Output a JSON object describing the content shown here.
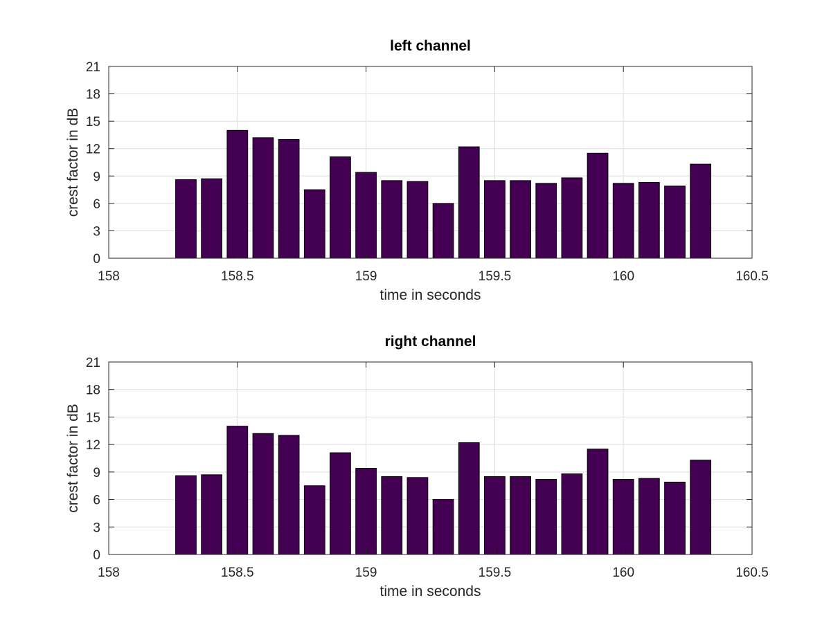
{
  "chart_data": [
    {
      "type": "bar",
      "title": "left channel",
      "xlabel": "time in seconds",
      "ylabel": "crest factor in dB",
      "xlim": [
        158,
        160.5
      ],
      "ylim": [
        0,
        21
      ],
      "xticks": [
        158,
        158.5,
        159,
        159.5,
        160,
        160.5
      ],
      "xtick_labels": [
        "158",
        "158.5",
        "159",
        "159.5",
        "160",
        "160.5"
      ],
      "yticks": [
        0,
        3,
        6,
        9,
        12,
        15,
        18,
        21
      ],
      "ytick_labels": [
        "0",
        "3",
        "6",
        "9",
        "12",
        "15",
        "18",
        "21"
      ],
      "grid": true,
      "bar_width": 0.08,
      "bar_color": "#440154",
      "x": [
        158.3,
        158.4,
        158.5,
        158.6,
        158.7,
        158.8,
        158.9,
        159.0,
        159.1,
        159.2,
        159.3,
        159.4,
        159.5,
        159.6,
        159.7,
        159.8,
        159.9,
        160.0,
        160.1,
        160.2,
        160.3
      ],
      "values": [
        8.6,
        8.7,
        14.0,
        13.2,
        13.0,
        7.5,
        11.1,
        9.4,
        8.5,
        8.4,
        6.0,
        12.2,
        8.5,
        8.5,
        8.2,
        8.8,
        11.5,
        8.2,
        8.3,
        7.9,
        10.3
      ]
    },
    {
      "type": "bar",
      "title": "right channel",
      "xlabel": "time in seconds",
      "ylabel": "crest factor in dB",
      "xlim": [
        158,
        160.5
      ],
      "ylim": [
        0,
        21
      ],
      "xticks": [
        158,
        158.5,
        159,
        159.5,
        160,
        160.5
      ],
      "xtick_labels": [
        "158",
        "158.5",
        "159",
        "159.5",
        "160",
        "160.5"
      ],
      "yticks": [
        0,
        3,
        6,
        9,
        12,
        15,
        18,
        21
      ],
      "ytick_labels": [
        "0",
        "3",
        "6",
        "9",
        "12",
        "15",
        "18",
        "21"
      ],
      "grid": true,
      "bar_width": 0.08,
      "bar_color": "#440154",
      "x": [
        158.3,
        158.4,
        158.5,
        158.6,
        158.7,
        158.8,
        158.9,
        159.0,
        159.1,
        159.2,
        159.3,
        159.4,
        159.5,
        159.6,
        159.7,
        159.8,
        159.9,
        160.0,
        160.1,
        160.2,
        160.3
      ],
      "values": [
        8.6,
        8.7,
        14.0,
        13.2,
        13.0,
        7.5,
        11.1,
        9.4,
        8.5,
        8.4,
        6.0,
        12.2,
        8.5,
        8.5,
        8.2,
        8.8,
        11.5,
        8.2,
        8.3,
        7.9,
        10.3
      ]
    }
  ]
}
